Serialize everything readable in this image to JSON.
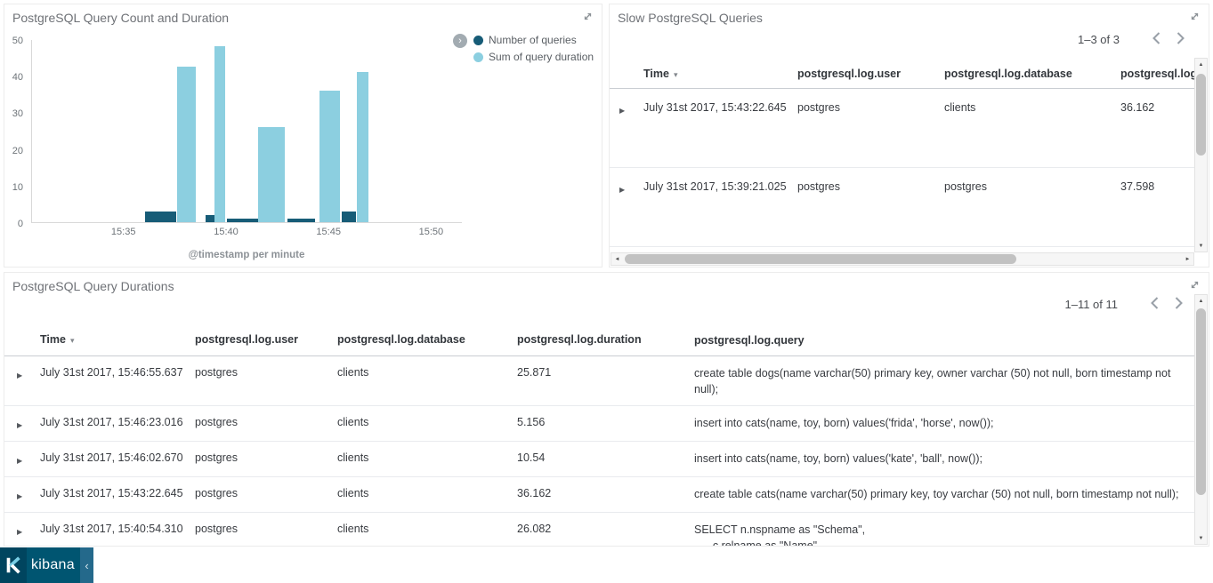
{
  "brand": {
    "name": "kibana",
    "bg": "#005571",
    "collapse_icon": "chevron-left"
  },
  "panels": {
    "chart": {
      "title": "PostgreSQL Query Count and Duration"
    },
    "slow": {
      "title": "Slow PostgreSQL Queries",
      "pagination": "1–3 of 3",
      "columns": [
        "Time",
        "postgresql.log.user",
        "postgresql.log.database",
        "postgresql.log.duration"
      ],
      "rows": [
        {
          "time": "July 31st 2017, 15:43:22.645",
          "user": "postgres",
          "database": "clients",
          "duration": "36.162"
        },
        {
          "time": "July 31st 2017, 15:39:21.025",
          "user": "postgres",
          "database": "postgres",
          "duration": "37.598"
        }
      ]
    },
    "durations": {
      "title": "PostgreSQL Query Durations",
      "pagination": "1–11 of 11",
      "columns": [
        "Time",
        "postgresql.log.user",
        "postgresql.log.database",
        "postgresql.log.duration",
        "postgresql.log.query"
      ],
      "rows": [
        {
          "time": "July 31st 2017, 15:46:55.637",
          "user": "postgres",
          "database": "clients",
          "duration": "25.871",
          "query": "create table dogs(name varchar(50) primary key, owner varchar (50) not null, born timestamp not null);"
        },
        {
          "time": "July 31st 2017, 15:46:23.016",
          "user": "postgres",
          "database": "clients",
          "duration": "5.156",
          "query": "insert into cats(name, toy, born) values('frida', 'horse', now());"
        },
        {
          "time": "July 31st 2017, 15:46:02.670",
          "user": "postgres",
          "database": "clients",
          "duration": "10.54",
          "query": "insert into cats(name, toy, born) values('kate', 'ball', now());"
        },
        {
          "time": "July 31st 2017, 15:43:22.645",
          "user": "postgres",
          "database": "clients",
          "duration": "36.162",
          "query": "create table cats(name varchar(50) primary key, toy varchar (50) not null, born timestamp not null);"
        },
        {
          "time": "July 31st 2017, 15:40:54.310",
          "user": "postgres",
          "database": "clients",
          "duration": "26.082",
          "query": "SELECT n.nspname as \"Schema\",\n      c.relname as \"Name\","
        }
      ]
    }
  },
  "chart_data": {
    "type": "bar",
    "title": "PostgreSQL Query Count and Duration",
    "xlabel": "@timestamp per minute",
    "ylabel": "",
    "ylim": [
      0,
      50
    ],
    "y_ticks": [
      0,
      10,
      20,
      30,
      40,
      50
    ],
    "x_unit": "minutes after 15:30",
    "x_domain_minutes": [
      0.5,
      21.5
    ],
    "x_ticks": [
      {
        "label": "15:35",
        "m": 5
      },
      {
        "label": "15:40",
        "m": 10
      },
      {
        "label": "15:45",
        "m": 15
      },
      {
        "label": "15:50",
        "m": 20
      }
    ],
    "grid": false,
    "legend_position": "right",
    "series": [
      {
        "name": "Number of queries",
        "color": "#175c77",
        "bars": [
          {
            "x": "15:36",
            "m": 6.0,
            "w": 1.55,
            "v": 3
          },
          {
            "x": "15:39",
            "m": 8.95,
            "w": 0.45,
            "v": 2
          },
          {
            "x": "15:40",
            "m": 10.0,
            "w": 1.5,
            "v": 1
          },
          {
            "x": "15:43",
            "m": 12.95,
            "w": 1.35,
            "v": 1
          },
          {
            "x": "15:46",
            "m": 15.6,
            "w": 0.7,
            "v": 3
          }
        ]
      },
      {
        "name": "Sum of query duration",
        "color": "#8ccfe0",
        "bars": [
          {
            "x": "15:37",
            "m": 7.55,
            "w": 0.95,
            "v": 42.5
          },
          {
            "x": "15:39",
            "m": 9.4,
            "w": 0.5,
            "v": 48
          },
          {
            "x": "15:41",
            "m": 11.5,
            "w": 1.3,
            "v": 26
          },
          {
            "x": "15:44",
            "m": 14.5,
            "w": 1.0,
            "v": 36
          },
          {
            "x": "15:46",
            "m": 16.35,
            "w": 0.55,
            "v": 41
          }
        ]
      }
    ]
  }
}
